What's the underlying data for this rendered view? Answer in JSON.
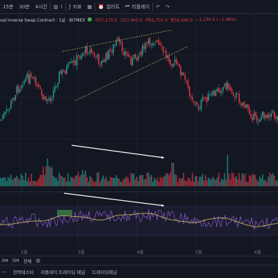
{
  "toolbar": {
    "intervals": [
      "15분",
      "30분",
      "4시간"
    ],
    "indicators_label": "지표",
    "alert_label": "얼러트",
    "replay_label": "리플레이",
    "undo_icon": "undo-icon",
    "redo_icon": "redo-icon"
  },
  "legend": {
    "symbol": "ual Inverse Swap Contract · 1날 · BITMEX",
    "open": "시57,170.5",
    "high": "고57,441.0",
    "low": "저55,751.0",
    "close": "종56,040.0",
    "change": "−1,130.5 (−1.98%)"
  },
  "annotations": {
    "price_arrow_label": "",
    "rsi_arrow_label": ""
  },
  "time_axis": [
    "2월",
    "3월",
    "4월",
    "5월",
    "6월"
  ],
  "footer_row1": {
    "ranges": [
      "3M",
      "5M",
      "전체"
    ]
  },
  "footer_tabs": [
    "전략테스터",
    "리플레이 트레이딩 패널",
    "트레이딩패널"
  ],
  "colors": {
    "up": "#26a69a",
    "down": "#f23645",
    "background": "#131722",
    "rsi_line": "#7e57c2",
    "rsi_ma": "#c9b458",
    "trendline": "#c9c85a",
    "arrow": "#ffffff"
  },
  "chart_data": {
    "type": "candlestick",
    "overlay": "volume",
    "indicator": "rsi",
    "series_close_profile": [
      0.78,
      0.7,
      0.55,
      0.45,
      0.42,
      0.5,
      0.62,
      0.58,
      0.4,
      0.35,
      0.3,
      0.22,
      0.18,
      0.25,
      0.3,
      0.2,
      0.12,
      0.2,
      0.28,
      0.22,
      0.15,
      0.1,
      0.18,
      0.26,
      0.3,
      0.4,
      0.55,
      0.68,
      0.6,
      0.58,
      0.52,
      0.48,
      0.55,
      0.62,
      0.7,
      0.78,
      0.74,
      0.72,
      0.76
    ]
  }
}
